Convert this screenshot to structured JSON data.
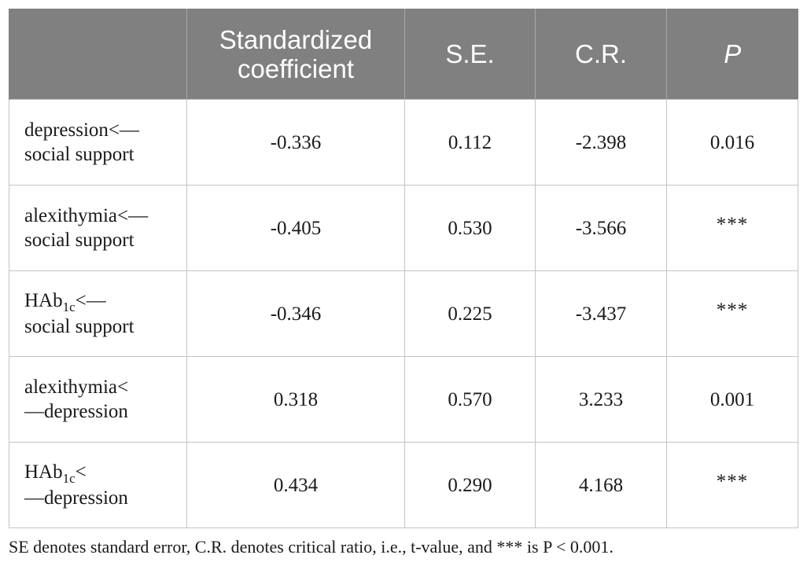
{
  "table": {
    "headers": [
      "",
      "Standardized coefficient",
      "S.E.",
      "C.R.",
      "P"
    ],
    "rows": [
      {
        "label_line1": "depression<—",
        "label_line2": "social support",
        "coef": "-0.336",
        "se": "0.112",
        "cr": "-2.398",
        "p": "0.016"
      },
      {
        "label_line1": "alexithymia<—",
        "label_line2": "social support",
        "coef": "-0.405",
        "se": "0.530",
        "cr": "-3.566",
        "p": "***"
      },
      {
        "label_line1_base": "HAb",
        "label_line1_sub": "1c",
        "label_line1_tail": "<—",
        "label_line2": "social support",
        "coef": "-0.346",
        "se": "0.225",
        "cr": "-3.437",
        "p": "***"
      },
      {
        "label_line1": "alexithymia<",
        "label_line2": "—depression",
        "coef": "0.318",
        "se": "0.570",
        "cr": "3.233",
        "p": "0.001"
      },
      {
        "label_line1_base": "HAb",
        "label_line1_sub": "1c",
        "label_line1_tail": "<",
        "label_line2": "—depression",
        "coef": "0.434",
        "se": "0.290",
        "cr": "4.168",
        "p": "***"
      }
    ]
  },
  "footnote": "SE denotes standard error, C.R. denotes critical ratio, i.e., t-value, and *** is P < 0.001."
}
